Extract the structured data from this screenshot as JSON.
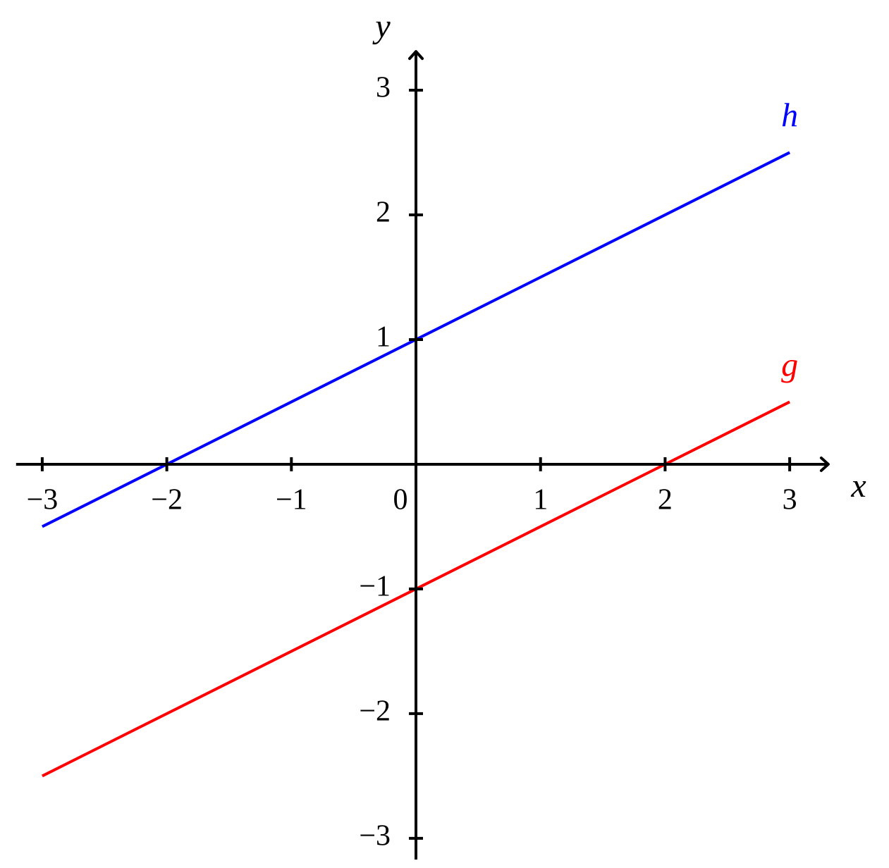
{
  "chart_data": {
    "type": "line",
    "x": [
      -3,
      3
    ],
    "series": [
      {
        "name": "h",
        "color": "#0000ff",
        "values": [
          -0.5,
          2.5
        ]
      },
      {
        "name": "g",
        "color": "#ff0000",
        "values": [
          -2.5,
          0.5
        ]
      }
    ],
    "x_label": "x",
    "y_label": "y",
    "xlim": [
      -3.21,
      3.31
    ],
    "ylim": [
      -3.17,
      3.31
    ],
    "xticks": [
      {
        "value": -3,
        "label": "−3"
      },
      {
        "value": -2,
        "label": "−2"
      },
      {
        "value": -1,
        "label": "−1"
      },
      0,
      1,
      2,
      3
    ],
    "yticks": [
      {
        "value": -3,
        "label": "−3"
      },
      {
        "value": -2,
        "label": "−2"
      },
      {
        "value": -1,
        "label": "−1"
      },
      1,
      2,
      3
    ]
  }
}
